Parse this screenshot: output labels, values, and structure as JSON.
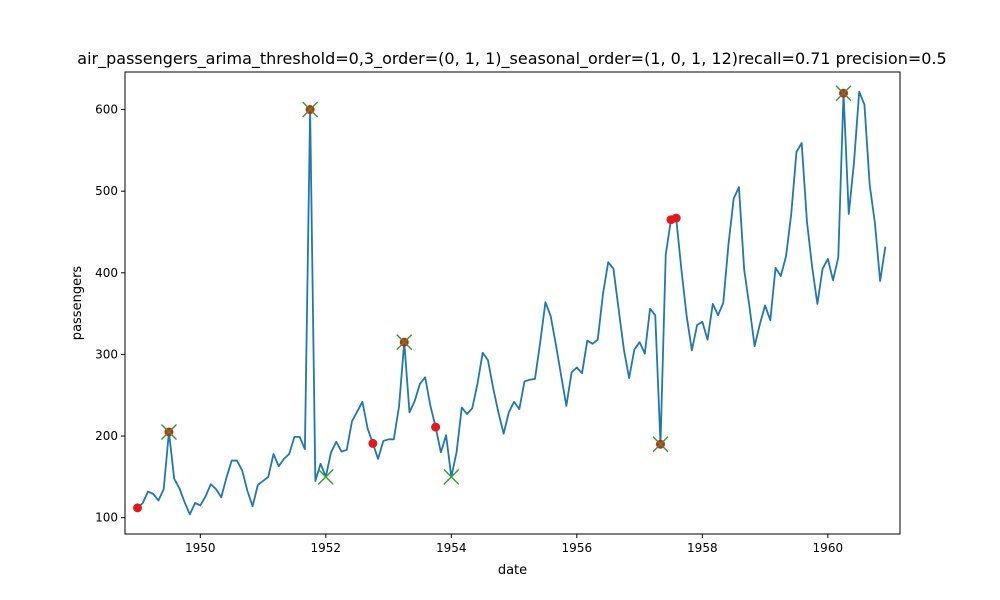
{
  "chart_data": {
    "type": "line",
    "title": "air_passengers_arima_threshold=0,3_order=(0, 1, 1)_seasonal_order=(1, 0, 1, 12)recall=0.71 precision=0.5",
    "xlabel": "date",
    "ylabel": "passengers",
    "xlim": [
      1948.8,
      1961.15
    ],
    "ylim": [
      80,
      646
    ],
    "x_ticks": [
      1950,
      1952,
      1954,
      1956,
      1958,
      1960
    ],
    "x_tick_labels": [
      "1950",
      "1952",
      "1954",
      "1956",
      "1958",
      "1960"
    ],
    "y_ticks": [
      100,
      200,
      300,
      400,
      500,
      600
    ],
    "y_tick_labels": [
      "100",
      "200",
      "300",
      "400",
      "500",
      "600"
    ],
    "grid": false,
    "start": "1949-01",
    "frequency": "monthly",
    "series": [
      {
        "role": "line",
        "color": "#1f77b4",
        "values": [
          112,
          118,
          132,
          129,
          121,
          135,
          205,
          148,
          136,
          119,
          104,
          118,
          115,
          126,
          141,
          135,
          125,
          149,
          170,
          170,
          158,
          133,
          114,
          140,
          145,
          150,
          178,
          163,
          172,
          178,
          199,
          199,
          184,
          600,
          145,
          166,
          150,
          180,
          193,
          181,
          183,
          218,
          230,
          242,
          209,
          191,
          172,
          194,
          196,
          196,
          236,
          315,
          229,
          243,
          264,
          272,
          237,
          211,
          180,
          201,
          150,
          180,
          235,
          227,
          234,
          264,
          302,
          293,
          259,
          229,
          203,
          229,
          242,
          233,
          267,
          269,
          270,
          315,
          364,
          347,
          312,
          274,
          237,
          278,
          284,
          277,
          317,
          313,
          318,
          374,
          413,
          405,
          355,
          306,
          271,
          306,
          315,
          301,
          356,
          348,
          190,
          422,
          465,
          467,
          404,
          347,
          305,
          336,
          340,
          318,
          362,
          348,
          363,
          435,
          491,
          505,
          404,
          359,
          310,
          337,
          360,
          342,
          406,
          396,
          420,
          472,
          548,
          559,
          463,
          407,
          362,
          405,
          417,
          391,
          419,
          620,
          472,
          535,
          622,
          606,
          508,
          461,
          390,
          432
        ]
      },
      {
        "role": "predicted-anomalies",
        "color": "#e31a1c",
        "marker": "circle",
        "points": [
          {
            "x": "1949-01",
            "y": 112
          },
          {
            "x": "1949-07",
            "y": 205
          },
          {
            "x": "1951-10",
            "y": 600
          },
          {
            "x": "1952-10",
            "y": 191
          },
          {
            "x": "1953-04",
            "y": 315
          },
          {
            "x": "1953-10",
            "y": 211
          },
          {
            "x": "1957-05",
            "y": 190
          },
          {
            "x": "1957-07",
            "y": 465
          },
          {
            "x": "1957-08",
            "y": 467
          },
          {
            "x": "1960-04",
            "y": 620
          }
        ]
      },
      {
        "role": "true-anomalies",
        "color": "#2ca02c",
        "marker": "x",
        "points": [
          {
            "x": "1949-07",
            "y": 205
          },
          {
            "x": "1951-10",
            "y": 600
          },
          {
            "x": "1952-01",
            "y": 150
          },
          {
            "x": "1953-04",
            "y": 315
          },
          {
            "x": "1954-01",
            "y": 150
          },
          {
            "x": "1957-05",
            "y": 190
          },
          {
            "x": "1960-04",
            "y": 620
          }
        ]
      }
    ]
  }
}
